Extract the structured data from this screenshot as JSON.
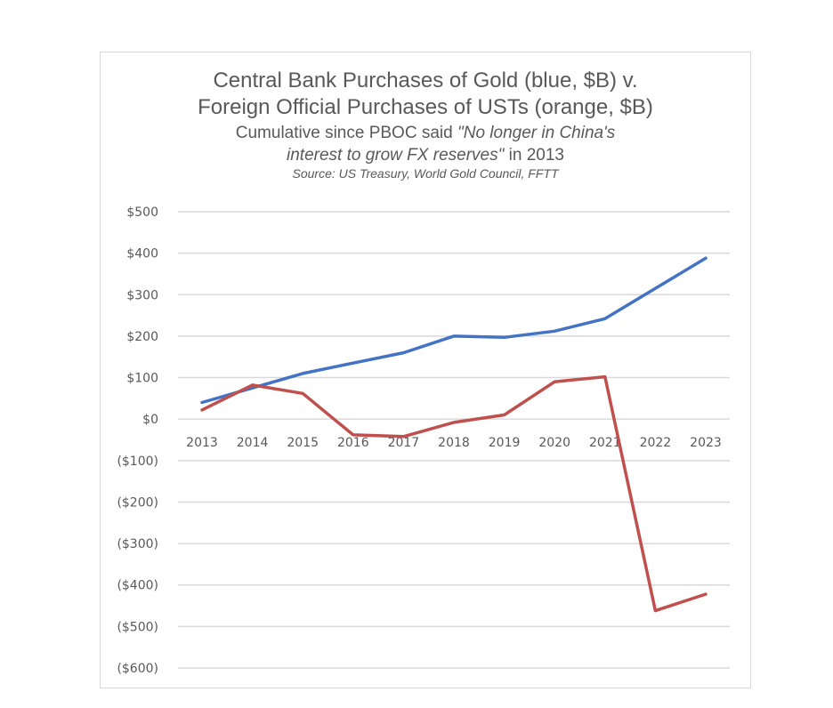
{
  "chart_data": {
    "type": "line",
    "title_line1": "Central Bank Purchases of Gold (blue, $B) v.",
    "title_line2": "Foreign Official Purchases of USTs (orange, $B)",
    "subtitle_pre": "Cumulative since PBOC said ",
    "subtitle_quote_a": "\"No longer in China's",
    "subtitle_quote_b": "interest to grow FX reserves\"",
    "subtitle_post": " in 2013",
    "source": "Source: US Treasury, World Gold Council, FFTT",
    "x": [
      "2013",
      "2014",
      "2015",
      "2016",
      "2017",
      "2018",
      "2019",
      "2020",
      "2021",
      "2022",
      "2023"
    ],
    "series": [
      {
        "color": "#4472c4",
        "values": [
          40,
          75,
          110,
          135,
          160,
          200,
          197,
          212,
          242,
          315,
          388
        ]
      },
      {
        "color": "#c0504d",
        "values": [
          22,
          82,
          62,
          -38,
          -42,
          -8,
          10,
          90,
          102,
          -462,
          -422
        ]
      }
    ],
    "ylim": [
      -600,
      500
    ],
    "yticks": [
      500,
      400,
      300,
      200,
      100,
      0,
      -100,
      -200,
      -300,
      -400,
      -500,
      -600
    ],
    "ytick_labels": [
      "$500",
      "$400",
      "$300",
      "$200",
      "$100",
      "$0",
      "($100)",
      "($200)",
      "($300)",
      "($400)",
      "($500)",
      "($600)"
    ],
    "grid": true,
    "xlabel": "",
    "ylabel": ""
  }
}
